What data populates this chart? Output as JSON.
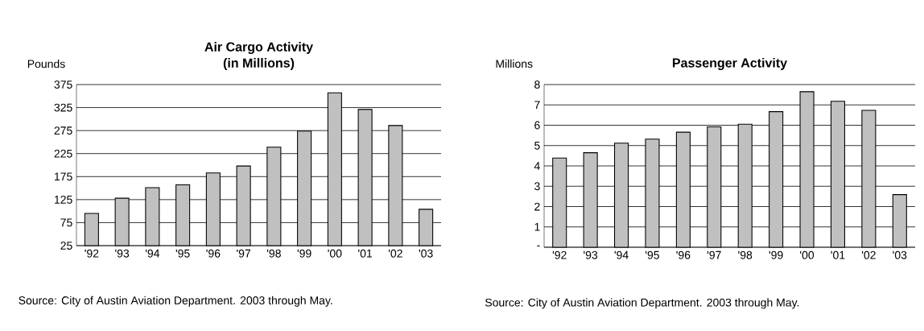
{
  "chart_data": [
    {
      "type": "bar",
      "title": "Air Cargo Activity",
      "subtitle": "(in Millions)",
      "ylabel": "Pounds",
      "categories": [
        "'92",
        "'93",
        "'94",
        "'95",
        "'96",
        "'97",
        "'98",
        "'99",
        "'00",
        "'01",
        "'02",
        "'03"
      ],
      "values": [
        95,
        128,
        151,
        157,
        183,
        198,
        239,
        274,
        357,
        321,
        286,
        104
      ],
      "color": "#c0c0c0",
      "ylim": [
        25,
        375
      ],
      "yticks": [
        25,
        75,
        125,
        175,
        225,
        275,
        325,
        375
      ],
      "grid": "y",
      "annotations": [
        "Source:  City of Austin Aviation Department. 2003 through May."
      ]
    },
    {
      "type": "bar",
      "title": "Passenger Activity",
      "ylabel": "Millions",
      "categories": [
        "'92",
        "'93",
        "'94",
        "'95",
        "'96",
        "'97",
        "'98",
        "'99",
        "'00",
        "'01",
        "'02",
        "'03"
      ],
      "values": [
        4.39,
        4.65,
        5.12,
        5.32,
        5.66,
        5.92,
        6.05,
        6.67,
        7.65,
        7.18,
        6.73,
        2.59
      ],
      "color": "#c0c0c0",
      "ylim": [
        0,
        8
      ],
      "yticks": [
        {
          "value": 0,
          "label": "-"
        },
        1,
        2,
        3,
        4,
        5,
        6,
        7,
        8
      ],
      "grid": "y",
      "annotations": [
        "Source:  City of Austin Aviation Department. 2003 through May."
      ]
    }
  ]
}
